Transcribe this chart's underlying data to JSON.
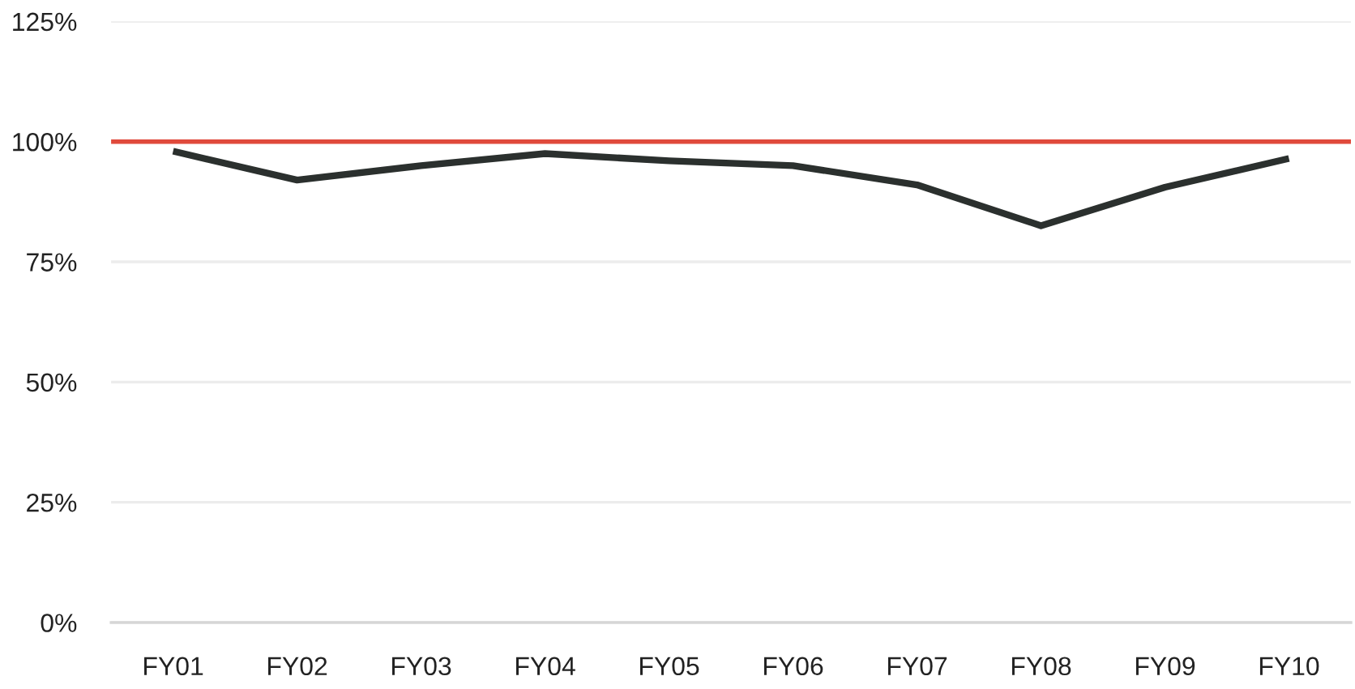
{
  "chart_data": {
    "type": "line",
    "categories": [
      "FY01",
      "FY02",
      "FY03",
      "FY04",
      "FY05",
      "FY06",
      "FY07",
      "FY08",
      "FY09",
      "FY10"
    ],
    "series": [
      {
        "color": "#2b302e",
        "values": [
          98,
          92,
          95,
          97.5,
          96,
          95,
          91,
          82.5,
          90.5,
          96.5
        ]
      }
    ],
    "ylim": [
      0,
      125
    ],
    "yticks": [
      {
        "value": 0,
        "label": "0%"
      },
      {
        "value": 25,
        "label": "25%"
      },
      {
        "value": 50,
        "label": "50%"
      },
      {
        "value": 75,
        "label": "75%"
      },
      {
        "value": 100,
        "label": "100%"
      },
      {
        "value": 125,
        "label": "125%"
      }
    ],
    "ref_lines": [
      {
        "axis": "y",
        "value": 100,
        "color": "#e04a3c"
      }
    ],
    "grid": "y",
    "marker": "none",
    "line_style": "solid"
  }
}
